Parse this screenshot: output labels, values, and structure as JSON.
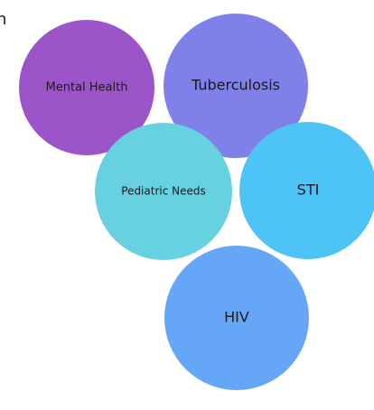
{
  "nodes": [
    {
      "label": "Mental Health",
      "color": "#9b55c9"
    },
    {
      "label": "Tuberculosis",
      "color": "#7f80e8"
    },
    {
      "label": "Pediatric Needs",
      "color": "#67d0e1"
    },
    {
      "label": "STI",
      "color": "#4dc3f6"
    },
    {
      "label": "HIV",
      "color": "#65a7f6"
    }
  ],
  "left_fragments": [
    "n",
    ";",
    "."
  ]
}
